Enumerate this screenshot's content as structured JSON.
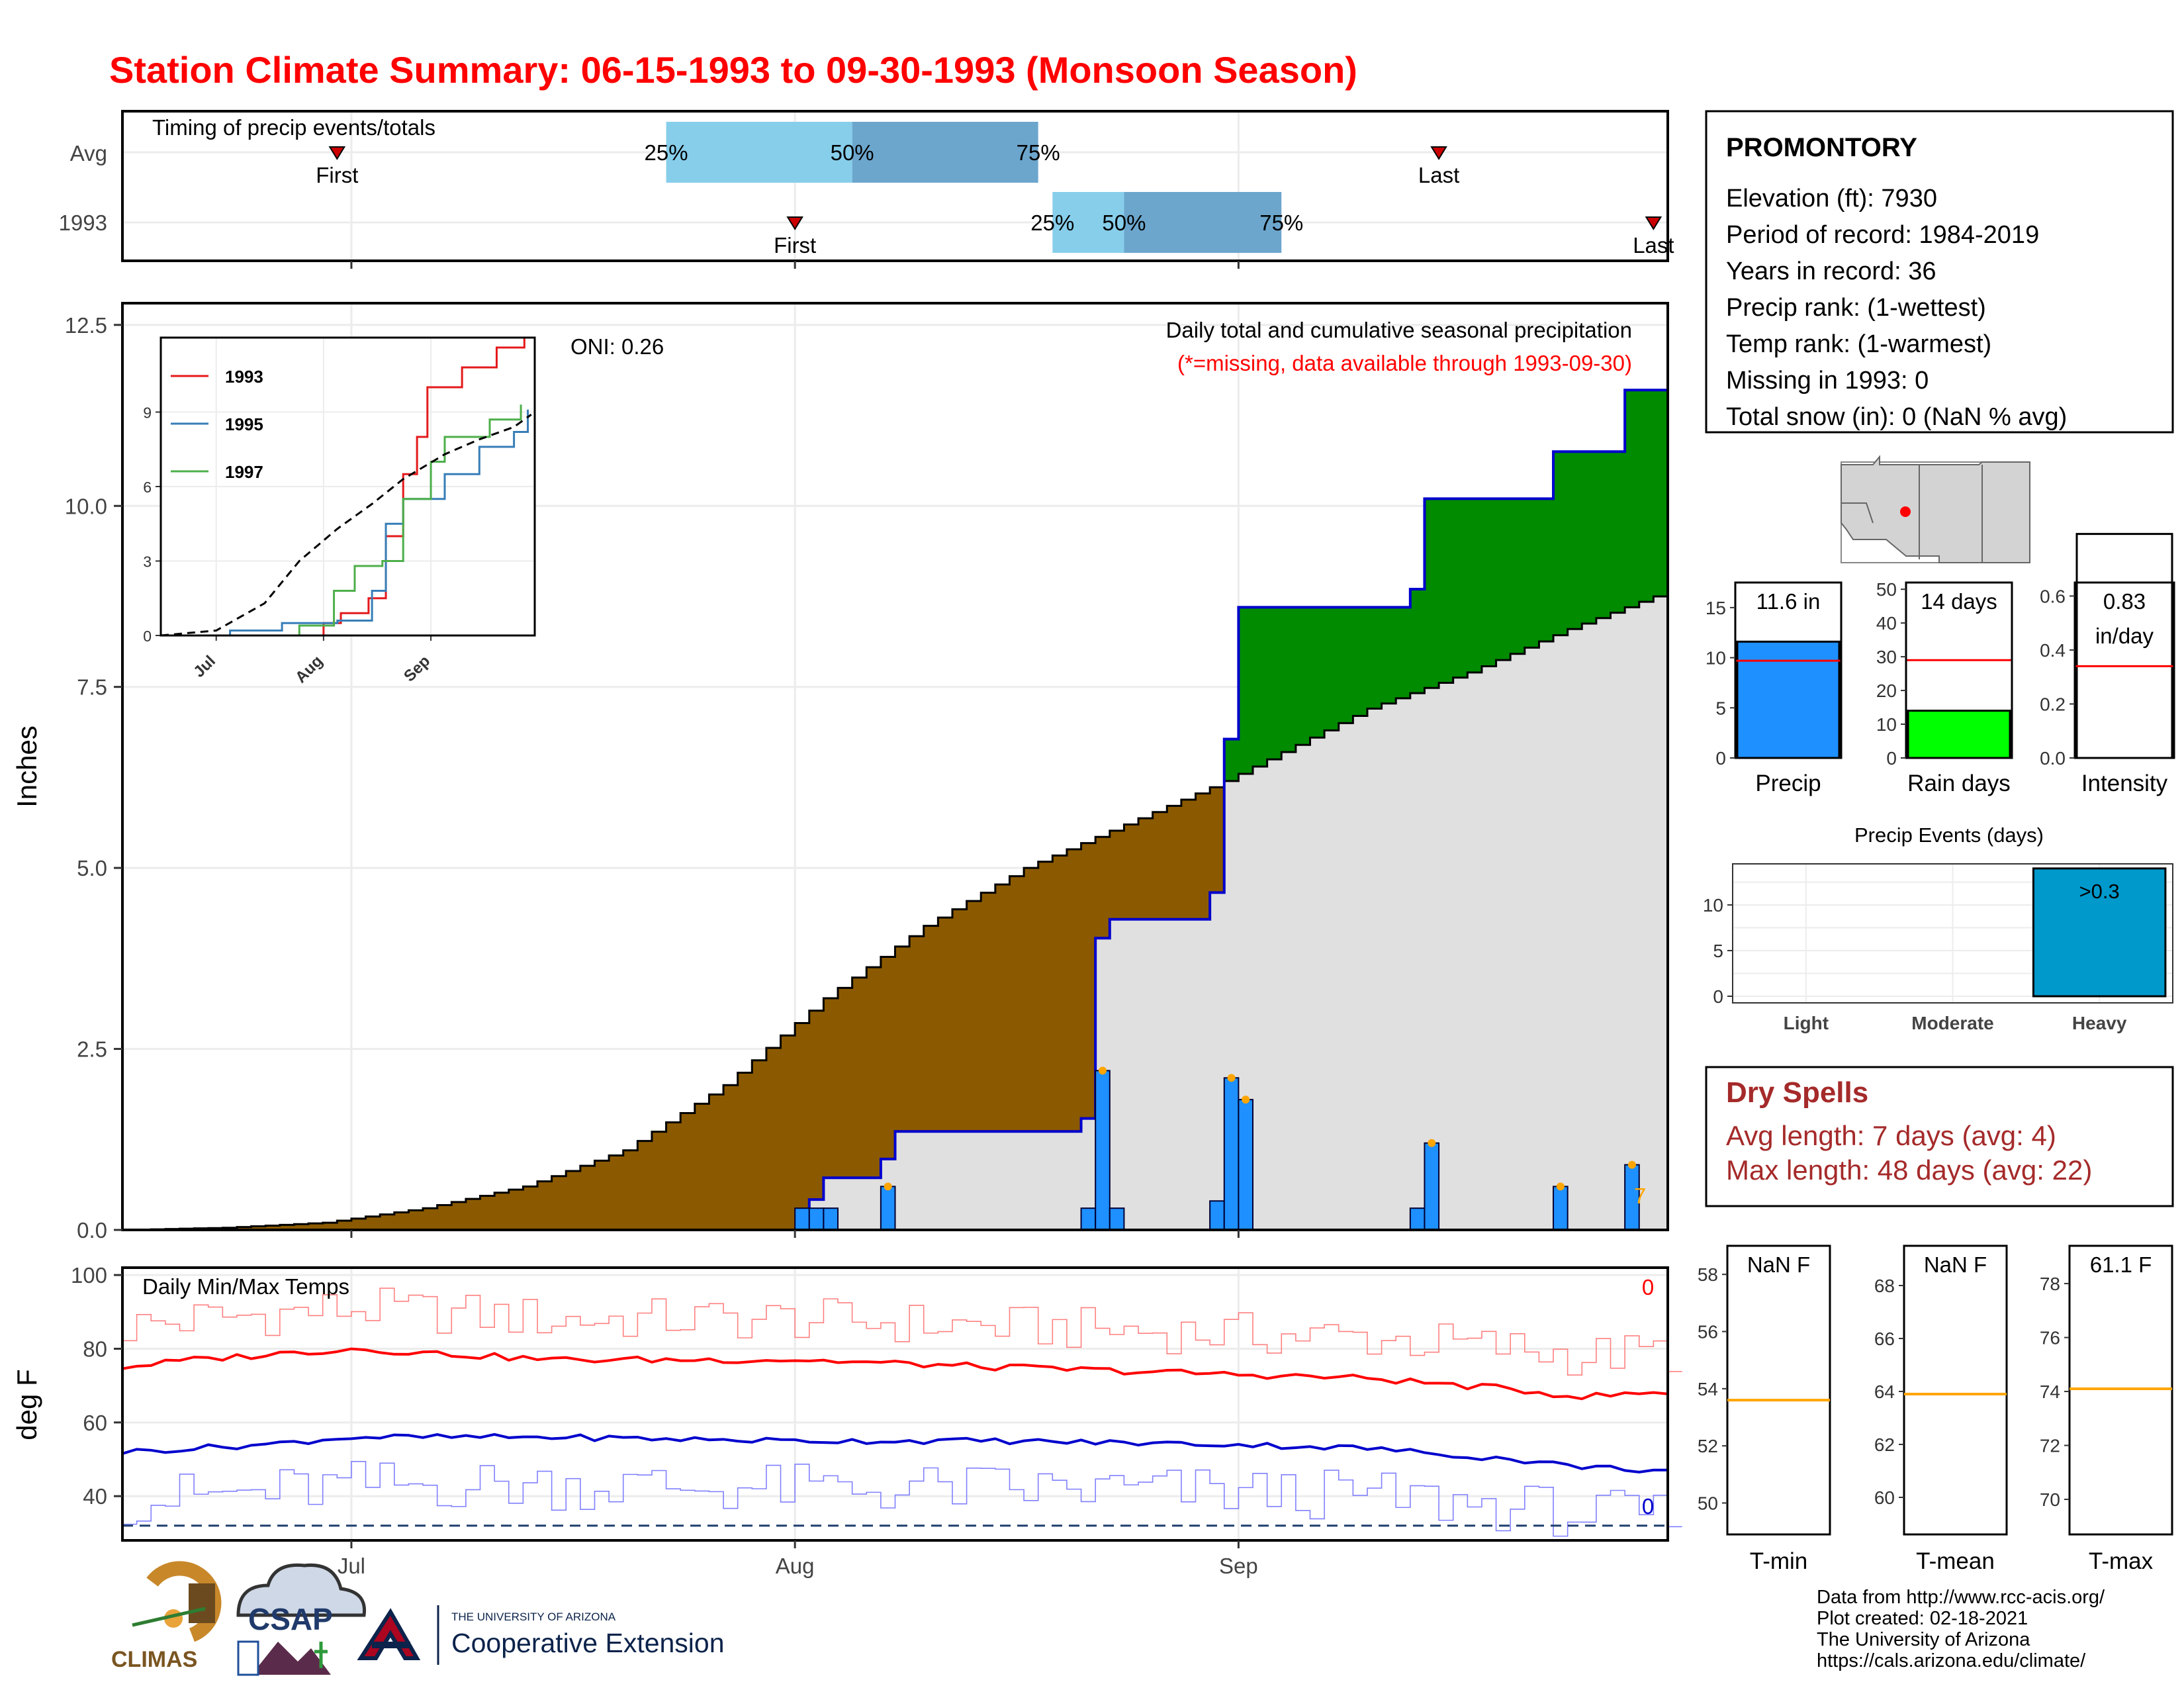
{
  "page": {
    "title": "Station Climate Summary: 06-15-1993 to 09-30-1993 (Monsoon Season)"
  },
  "colors": {
    "title": "#ff0000",
    "q_light": "#87ceeb",
    "q_dark": "#6ca6cd",
    "cum_fill_brown": "#8b5a00",
    "cum_fill_green": "#008b00",
    "bg_gray": "#e0e0e0",
    "daily_bar": "#1e90ff",
    "precip_bar": "#1e90ff",
    "raindays_bar": "#00ff00",
    "heavy_bar": "#0099cc",
    "tmax": "#ff0000",
    "tmin": "#0000cd",
    "dry": "#a52a2a",
    "orange": "#ffa500"
  },
  "timing": {
    "label": "Timing of precip events/totals",
    "rows": [
      {
        "name": "Avg",
        "first_label": "First",
        "last_label": "Last",
        "first": "1993-06-30",
        "q25": "1993-07-23",
        "q50": "1993-08-05",
        "q75": "1993-08-18",
        "last": "1993-09-15",
        "q25_label": "25%",
        "q50_label": "50%",
        "q75_label": "75%"
      },
      {
        "name": "1993",
        "first_label": "First",
        "last_label": "Last",
        "first": "1993-08-01",
        "q25": "1993-08-19",
        "q50": "1993-08-24",
        "q75": "1993-09-04",
        "last": "1993-09-30",
        "q25_label": "25%",
        "q50_label": "50%",
        "q75_label": "75%"
      }
    ]
  },
  "main": {
    "ylabel": "Inches",
    "yticks": [
      "0.0",
      "2.5",
      "5.0",
      "7.5",
      "10.0",
      "12.5"
    ],
    "oni": "ONI: 0.26",
    "subtitle": "Daily total and cumulative seasonal precipitation",
    "missing_note": "(*=missing, data available through 1993-09-30)",
    "missing_count": "7"
  },
  "inset": {
    "legend": [
      "1993",
      "1995",
      "1997"
    ],
    "yticks": [
      "0",
      "3",
      "6",
      "9"
    ],
    "xticks": [
      "Jul",
      "Aug",
      "Sep"
    ]
  },
  "temps": {
    "label": "Daily Min/Max Temps",
    "ylabel": "deg F",
    "yticks": [
      "40",
      "60",
      "80",
      "100"
    ],
    "xticks": [
      "Jul",
      "Aug",
      "Sep"
    ],
    "tmax_missing": "0",
    "tmin_missing": "0"
  },
  "station": {
    "name": "PROMONTORY",
    "lines": [
      "Elevation (ft): 7930",
      "Period of record: 1984-2019",
      "Years in record: 36",
      "Precip rank:  (1-wettest)",
      "Temp rank:  (1-warmest)",
      "Missing in 1993: 0",
      "Total snow (in): 0 (NaN % avg)"
    ]
  },
  "mini": {
    "precip": {
      "label": "Precip",
      "value_label": "11.6 in",
      "value": 11.6,
      "avg": 9.7,
      "yticks": [
        "0",
        "5",
        "10",
        "15"
      ]
    },
    "raindays": {
      "label": "Rain days",
      "value_label": "14 days",
      "value": 14,
      "avg": 29,
      "yticks": [
        "0",
        "10",
        "20",
        "30",
        "40",
        "50"
      ]
    },
    "intensity": {
      "label": "Intensity",
      "value_label_1": "0.83",
      "value_label_2": "in/day",
      "value": 0.83,
      "avg": 0.34,
      "yticks": [
        "0.0",
        "0.2",
        "0.4",
        "0.6"
      ]
    }
  },
  "events": {
    "title": "Precip Events (days)",
    "categories": [
      "Light",
      "Moderate",
      "Heavy"
    ],
    "values": [
      0,
      0,
      14
    ],
    "heavy_label": ">0.3",
    "yticks": [
      "0",
      "5",
      "10"
    ]
  },
  "dry": {
    "title": "Dry Spells",
    "avg_line": "Avg length: 7 days (avg: 4)",
    "max_line": "Max length: 48 days (avg: 22)"
  },
  "temp_panels": {
    "tmin": {
      "label": "T-min",
      "value_label": "NaN F",
      "avg": 53.6,
      "yticks": [
        "50",
        "52",
        "54",
        "56",
        "58"
      ]
    },
    "tmean": {
      "label": "T-mean",
      "value_label": "NaN F",
      "avg": 63.9,
      "yticks": [
        "60",
        "62",
        "64",
        "66",
        "68"
      ]
    },
    "tmax": {
      "label": "T-max",
      "value_label": "61.1 F",
      "avg": 74.1,
      "yticks": [
        "70",
        "72",
        "74",
        "76",
        "78"
      ]
    }
  },
  "footer": {
    "lines": [
      "Data from http://www.rcc-acis.org/",
      "Plot created: 02-18-2021",
      "The University of Arizona",
      "https://cals.arizona.edu/climate/"
    ],
    "climas": "CLIMAS",
    "csap": "CSAP",
    "ua_small": "THE UNIVERSITY OF ARIZONA",
    "ua_big": "Cooperative Extension"
  },
  "chart_data": [
    {
      "type": "area",
      "x_range": [
        "1993-06-15",
        "1993-09-30"
      ],
      "ylim": [
        0,
        12.8
      ],
      "ylabel": "Inches",
      "series": [
        {
          "name": "1993",
          "note": "cumulative (step)",
          "points": [
            [
              "1993-06-15",
              0
            ],
            [
              "1993-08-01",
              0
            ],
            [
              "1993-08-02",
              0.42
            ],
            [
              "1993-08-03",
              0.72
            ],
            [
              "1993-08-06",
              0.72
            ],
            [
              "1993-08-07",
              0.98
            ],
            [
              "1993-08-08",
              1.36
            ],
            [
              "1993-08-20",
              1.36
            ],
            [
              "1993-08-21",
              1.54
            ],
            [
              "1993-08-22",
              4.03
            ],
            [
              "1993-08-23",
              4.29
            ],
            [
              "1993-08-29",
              4.29
            ],
            [
              "1993-08-30",
              4.66
            ],
            [
              "1993-08-31",
              6.78
            ],
            [
              "1993-09-01",
              8.6
            ],
            [
              "1993-09-12",
              8.6
            ],
            [
              "1993-09-13",
              8.85
            ],
            [
              "1993-09-14",
              10.1
            ],
            [
              "1993-09-22",
              10.1
            ],
            [
              "1993-09-23",
              10.75
            ],
            [
              "1993-09-27",
              10.75
            ],
            [
              "1993-09-28",
              11.6
            ],
            [
              "1993-09-30",
              11.6
            ]
          ]
        },
        {
          "name": "Average cumulative",
          "points": [
            [
              "1993-06-15",
              0
            ],
            [
              "1993-06-22",
              0.03
            ],
            [
              "1993-06-29",
              0.1
            ],
            [
              "1993-07-06",
              0.3
            ],
            [
              "1993-07-13",
              0.6
            ],
            [
              "1993-07-20",
              1.1
            ],
            [
              "1993-07-27",
              2
            ],
            [
              "1993-08-03",
              3.2
            ],
            [
              "1993-08-10",
              4.2
            ],
            [
              "1993-08-17",
              5
            ],
            [
              "1993-08-24",
              5.6
            ],
            [
              "1993-08-31",
              6.2
            ],
            [
              "1993-09-03",
              6.5
            ],
            [
              "1993-09-10",
              7.2
            ],
            [
              "1993-09-17",
              7.7
            ],
            [
              "1993-09-24",
              8.3
            ],
            [
              "1993-09-30",
              8.75
            ]
          ]
        },
        {
          "name": "Daily precipitation",
          "type": "bar",
          "points": [
            [
              "1993-08-01",
              0.3
            ],
            [
              "1993-08-02",
              0.3
            ],
            [
              "1993-08-03",
              0.3
            ],
            [
              "1993-08-07",
              0.6
            ],
            [
              "1993-08-21",
              0.3
            ],
            [
              "1993-08-22",
              2.2
            ],
            [
              "1993-08-23",
              0.3
            ],
            [
              "1993-08-30",
              0.4
            ],
            [
              "1993-08-31",
              2.1
            ],
            [
              "1993-09-01",
              1.8
            ],
            [
              "1993-09-13",
              0.3
            ],
            [
              "1993-09-14",
              1.2
            ],
            [
              "1993-09-23",
              0.6
            ],
            [
              "1993-09-28",
              0.9
            ]
          ]
        }
      ]
    },
    {
      "type": "line",
      "name": "Inset cumulative comparison",
      "ylim": [
        0,
        12
      ],
      "series": [
        {
          "name": "1993",
          "points": [
            [
              "1993-07-28",
              0
            ],
            [
              "1993-08-01",
              0.5
            ],
            [
              "1993-08-06",
              0.9
            ],
            [
              "1993-08-14",
              1.5
            ],
            [
              "1993-08-19",
              4
            ],
            [
              "1993-08-24",
              6.5
            ],
            [
              "1993-08-28",
              8
            ],
            [
              "1993-08-31",
              10
            ],
            [
              "1993-09-10",
              10.8
            ],
            [
              "1993-09-20",
              11.6
            ],
            [
              "1993-09-28",
              12
            ]
          ]
        },
        {
          "name": "1995",
          "points": [
            [
              "1993-06-15",
              0
            ],
            [
              "1993-07-05",
              0.2
            ],
            [
              "1993-07-20",
              0.5
            ],
            [
              "1993-08-05",
              0.6
            ],
            [
              "1993-08-15",
              1.8
            ],
            [
              "1993-08-19",
              4.5
            ],
            [
              "1993-08-24",
              5.5
            ],
            [
              "1993-09-05",
              6.5
            ],
            [
              "1993-09-15",
              7.6
            ],
            [
              "1993-09-25",
              8.2
            ],
            [
              "1993-09-29",
              9.1
            ]
          ]
        },
        {
          "name": "1997",
          "points": [
            [
              "1993-07-15",
              0
            ],
            [
              "1993-07-25",
              0.4
            ],
            [
              "1993-08-04",
              1.8
            ],
            [
              "1993-08-10",
              2.8
            ],
            [
              "1993-08-18",
              3
            ],
            [
              "1993-08-24",
              5.5
            ],
            [
              "1993-09-01",
              7
            ],
            [
              "1993-09-05",
              8
            ],
            [
              "1993-09-18",
              8.7
            ],
            [
              "1993-09-27",
              9.3
            ]
          ]
        },
        {
          "name": "Average",
          "points": [
            [
              "1993-06-15",
              0
            ],
            [
              "1993-07-01",
              0.2
            ],
            [
              "1993-07-15",
              1.3
            ],
            [
              "1993-07-25",
              3
            ],
            [
              "1993-08-05",
              4.3
            ],
            [
              "1993-08-15",
              5.3
            ],
            [
              "1993-08-24",
              6.3
            ],
            [
              "1993-09-05",
              7.3
            ],
            [
              "1993-09-15",
              7.9
            ],
            [
              "1993-09-25",
              8.4
            ],
            [
              "1993-09-30",
              8.9
            ]
          ]
        }
      ]
    },
    {
      "type": "line",
      "name": "Daily Min/Max Temps",
      "ylim": [
        28,
        102
      ],
      "ylabel": "deg F",
      "series": [
        {
          "name": "Avg max",
          "points": [
            [
              "1993-06-15",
              75
            ],
            [
              "1993-06-20",
              77
            ],
            [
              "1993-07-01",
              80
            ],
            [
              "1993-07-15",
              77
            ],
            [
              "1993-08-01",
              77
            ],
            [
              "1993-08-15",
              75
            ],
            [
              "1993-09-01",
              73
            ],
            [
              "1993-09-10",
              72
            ],
            [
              "1993-09-20",
              69
            ],
            [
              "1993-09-25",
              67
            ],
            [
              "1993-09-30",
              68
            ]
          ]
        },
        {
          "name": "Avg min",
          "points": [
            [
              "1993-06-15",
              52
            ],
            [
              "1993-06-25",
              54
            ],
            [
              "1993-07-01",
              56
            ],
            [
              "1993-07-15",
              56
            ],
            [
              "1993-08-01",
              55
            ],
            [
              "1993-08-15",
              55
            ],
            [
              "1993-09-01",
              54
            ],
            [
              "1993-09-10",
              53
            ],
            [
              "1993-09-20",
              50
            ],
            [
              "1993-09-25",
              48
            ],
            [
              "1993-09-30",
              47
            ]
          ]
        }
      ],
      "freeze_line": 32
    },
    {
      "type": "bar",
      "name": "Precip Events (days)",
      "categories": [
        "Light",
        "Moderate",
        "Heavy"
      ],
      "values": [
        0,
        0,
        14
      ],
      "ylim": [
        0,
        14.5
      ]
    }
  ]
}
